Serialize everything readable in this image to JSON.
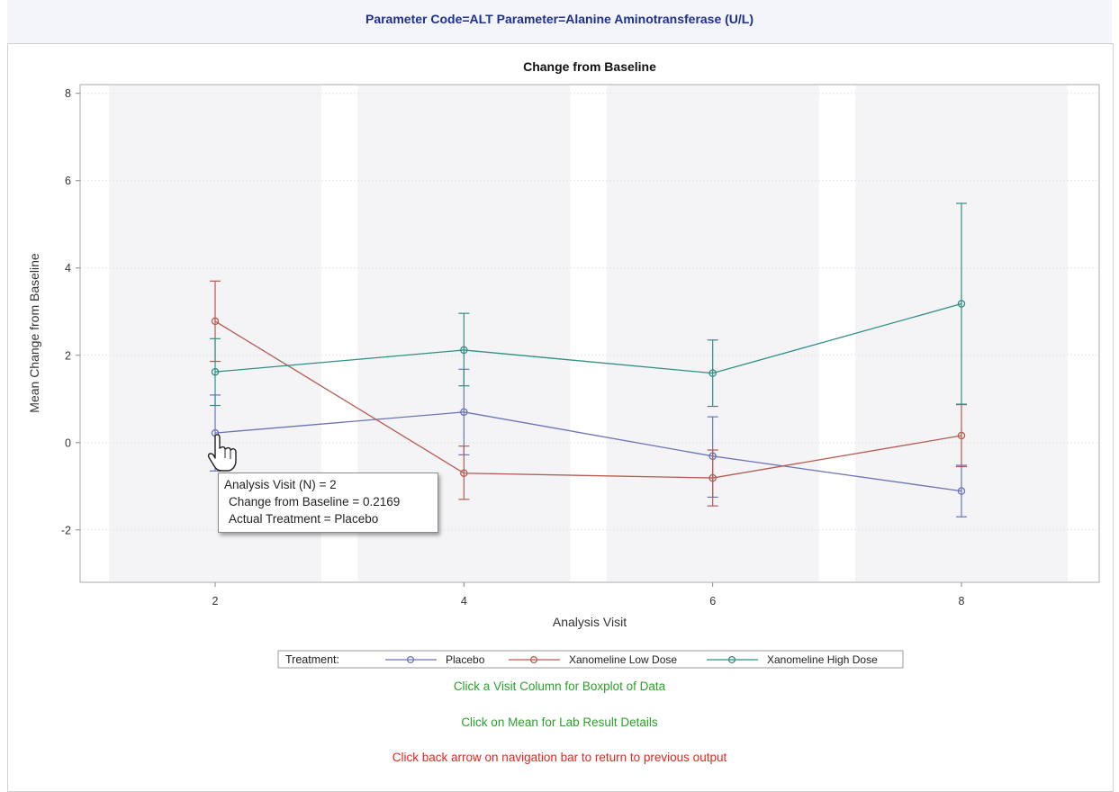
{
  "header": {
    "title": "Parameter Code=ALT Parameter=Alanine Aminotransferase (U/L)"
  },
  "chart_data": {
    "type": "line",
    "title": "Change from Baseline",
    "xlabel": "Analysis Visit",
    "ylabel": "Mean Change from Baseline",
    "x": [
      2,
      4,
      6,
      8
    ],
    "x_ticks": [
      "2",
      "4",
      "6",
      "8"
    ],
    "y_ticks": [
      "-2",
      "0",
      "2",
      "4",
      "6",
      "8"
    ],
    "ylim": [
      -3.2,
      8.2
    ],
    "grid": true,
    "series": [
      {
        "name": "Placebo",
        "color": "#6b74b6",
        "values": [
          0.22,
          0.7,
          -0.31,
          -1.11
        ],
        "lower": [
          -0.65,
          -0.28,
          -1.25,
          -1.7
        ],
        "upper": [
          1.09,
          1.68,
          0.59,
          -0.52
        ]
      },
      {
        "name": "Xanomeline Low Dose",
        "color": "#b65b50",
        "values": [
          2.78,
          -0.7,
          -0.81,
          0.16
        ],
        "lower": [
          1.86,
          -1.3,
          -1.45,
          -0.55
        ],
        "upper": [
          3.7,
          -0.08,
          -0.17,
          0.87
        ]
      },
      {
        "name": "Xanomeline High Dose",
        "color": "#2f8f84",
        "values": [
          1.62,
          2.12,
          1.59,
          3.18
        ],
        "lower": [
          0.85,
          1.3,
          0.83,
          0.88
        ],
        "upper": [
          2.38,
          2.96,
          2.35,
          5.48
        ]
      }
    ],
    "legend": {
      "title": "Treatment:",
      "position": "bottom"
    }
  },
  "tooltip": {
    "line1": "Analysis Visit (N) = 2",
    "line2": "Change from Baseline = 0.2169",
    "line3": "Actual Treatment = Placebo"
  },
  "instructions": {
    "visit_column": "Click a Visit Column for Boxplot of Data",
    "mean_details": "Click on Mean for Lab Result Details",
    "back_arrow": "Click back arrow on navigation bar to return to previous output"
  },
  "colors": {
    "instruction_green": "#2ca02c",
    "instruction_red": "#e8241d",
    "title_blue": "#1e2f8c"
  }
}
